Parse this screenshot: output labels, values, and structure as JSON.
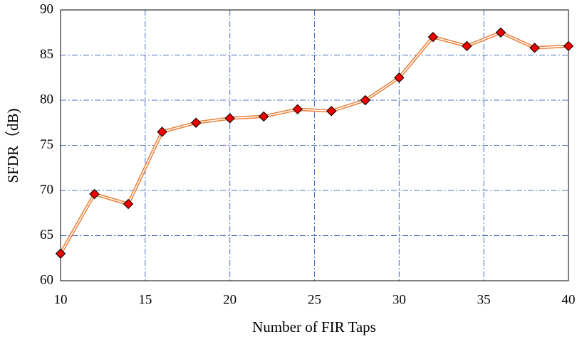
{
  "chart_data": {
    "type": "line",
    "x_label": "Number of FIR Taps",
    "y_label": "SFDR（dB)",
    "x": [
      10,
      12,
      14,
      16,
      18,
      20,
      22,
      24,
      26,
      28,
      30,
      32,
      34,
      36,
      38,
      40
    ],
    "series": [
      {
        "color": "#e8803a",
        "marker_color": "#ee0000",
        "values": [
          63,
          69.6,
          68.5,
          76.5,
          77.5,
          78,
          78.2,
          79,
          78.8,
          80,
          82.5,
          87,
          86,
          87.5,
          85.8,
          86
        ]
      }
    ],
    "xlim": [
      10,
      40
    ],
    "xticks": [
      10,
      15,
      20,
      25,
      30,
      35,
      40
    ],
    "ylim": [
      60,
      90
    ],
    "yticks": [
      60,
      65,
      70,
      75,
      80,
      85,
      90
    ],
    "grid": true,
    "grid_color": "#4a6fc0"
  }
}
